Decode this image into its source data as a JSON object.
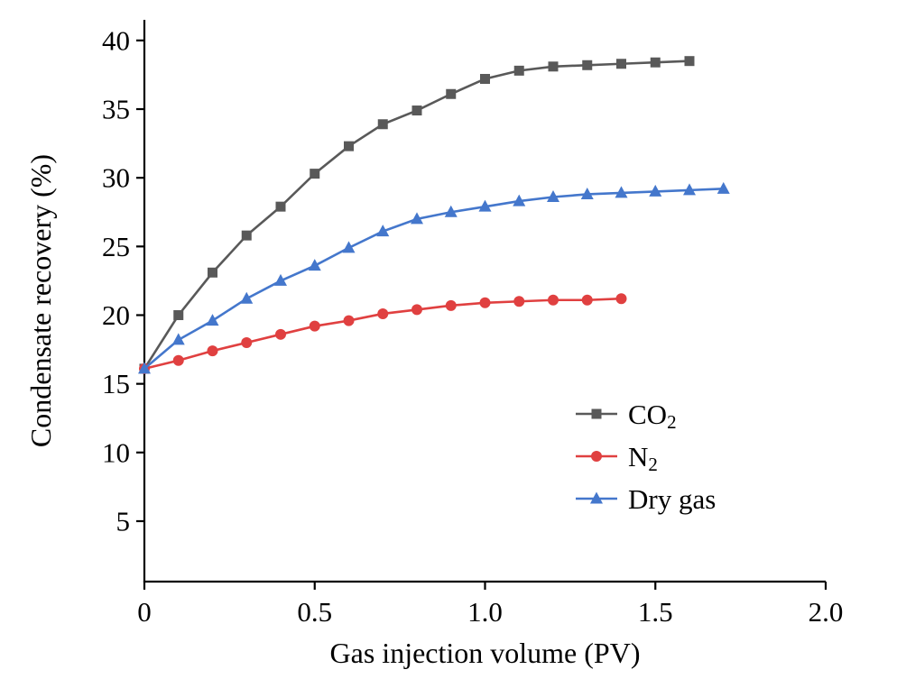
{
  "figure": {
    "background": "#ffffff",
    "axis_color": "#000000"
  },
  "chart_data": {
    "type": "line",
    "title": "",
    "xlabel": "Gas injection volume (PV)",
    "ylabel": "Condensate recovery (%)",
    "xlim": [
      0,
      2.0
    ],
    "ylim": [
      0.6,
      41.5
    ],
    "xticks": [
      0,
      0.5,
      1.0,
      1.5,
      2.0
    ],
    "xtick_labels": [
      "0",
      "0.5",
      "1.0",
      "1.5",
      "2.0"
    ],
    "yticks": [
      5,
      10,
      15,
      20,
      25,
      30,
      35,
      40
    ],
    "ytick_labels": [
      "5",
      "10",
      "15",
      "20",
      "25",
      "30",
      "35",
      "40"
    ],
    "grid": false,
    "legend_position": "inside-lower-right",
    "series": [
      {
        "name": "CO2",
        "label_main": "CO",
        "label_sub": "2",
        "color": "#595959",
        "marker": "square",
        "x": [
          0,
          0.1,
          0.2,
          0.3,
          0.4,
          0.5,
          0.6,
          0.7,
          0.8,
          0.9,
          1.0,
          1.1,
          1.2,
          1.3,
          1.4,
          1.5,
          1.6
        ],
        "y": [
          16.1,
          20.0,
          23.1,
          25.8,
          27.9,
          30.3,
          32.3,
          33.9,
          34.9,
          36.1,
          37.2,
          37.8,
          38.1,
          38.2,
          38.3,
          38.4,
          38.5
        ]
      },
      {
        "name": "N2",
        "label_main": "N",
        "label_sub": "2",
        "color": "#e04040",
        "marker": "circle",
        "x": [
          0,
          0.1,
          0.2,
          0.3,
          0.4,
          0.5,
          0.6,
          0.7,
          0.8,
          0.9,
          1.0,
          1.1,
          1.2,
          1.3,
          1.4
        ],
        "y": [
          16.1,
          16.7,
          17.4,
          18.0,
          18.6,
          19.2,
          19.6,
          20.1,
          20.4,
          20.7,
          20.9,
          21.0,
          21.1,
          21.1,
          21.2
        ]
      },
      {
        "name": "Dry gas",
        "label_main": "Dry gas",
        "label_sub": "",
        "color": "#4477cc",
        "marker": "triangle",
        "x": [
          0,
          0.1,
          0.2,
          0.3,
          0.4,
          0.5,
          0.6,
          0.7,
          0.8,
          0.9,
          1.0,
          1.1,
          1.2,
          1.3,
          1.4,
          1.5,
          1.6,
          1.7
        ],
        "y": [
          16.1,
          18.2,
          19.6,
          21.2,
          22.5,
          23.6,
          24.9,
          26.1,
          27.0,
          27.5,
          27.9,
          28.3,
          28.6,
          28.8,
          28.9,
          29.0,
          29.1,
          29.2
        ]
      }
    ]
  }
}
